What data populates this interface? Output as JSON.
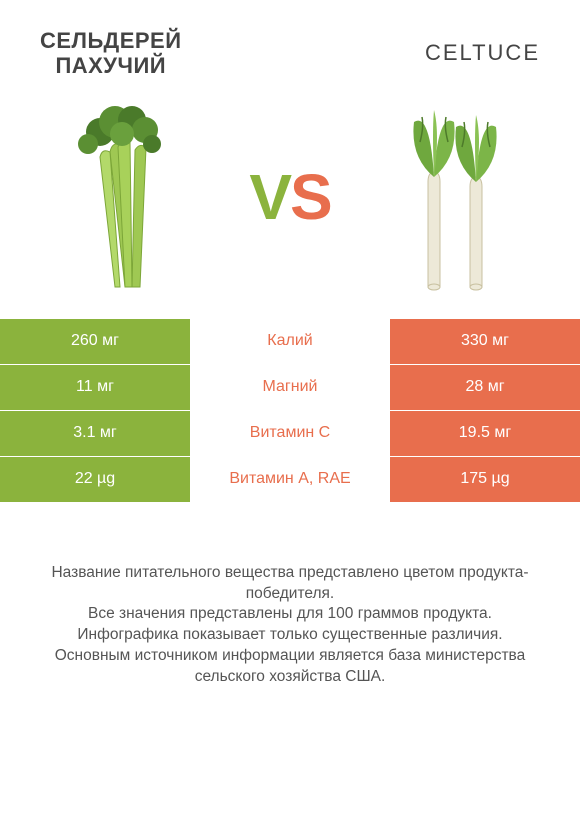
{
  "header": {
    "left_title_line1": "СЕЛЬДЕРЕЙ",
    "left_title_line2": "ПАХУЧИЙ",
    "right_title": "CELTUCE"
  },
  "vs": {
    "v": "V",
    "s": "S"
  },
  "colors": {
    "left": "#8bb33d",
    "right": "#e86e4d",
    "mid_text_winner_left": "#8bb33d",
    "mid_text_winner_right": "#e86e4d",
    "cell_text": "#ffffff",
    "footer_text": "#555555"
  },
  "rows": [
    {
      "left": "260 мг",
      "mid": "Калий",
      "right": "330 мг",
      "winner": "right"
    },
    {
      "left": "11 мг",
      "mid": "Магний",
      "right": "28 мг",
      "winner": "right"
    },
    {
      "left": "3.1 мг",
      "mid": "Витамин C",
      "right": "19.5 мг",
      "winner": "right"
    },
    {
      "left": "22 µg",
      "mid": "Витамин A, RAE",
      "right": "175 µg",
      "winner": "right"
    }
  ],
  "footer": {
    "l1": "Название питательного вещества представлено цветом продукта-победителя.",
    "l2": "Все значения представлены для 100 граммов продукта.",
    "l3": "Инфографика показывает только существенные различия.",
    "l4": "Основным источником информации является база министерства сельского хозяйства США."
  }
}
